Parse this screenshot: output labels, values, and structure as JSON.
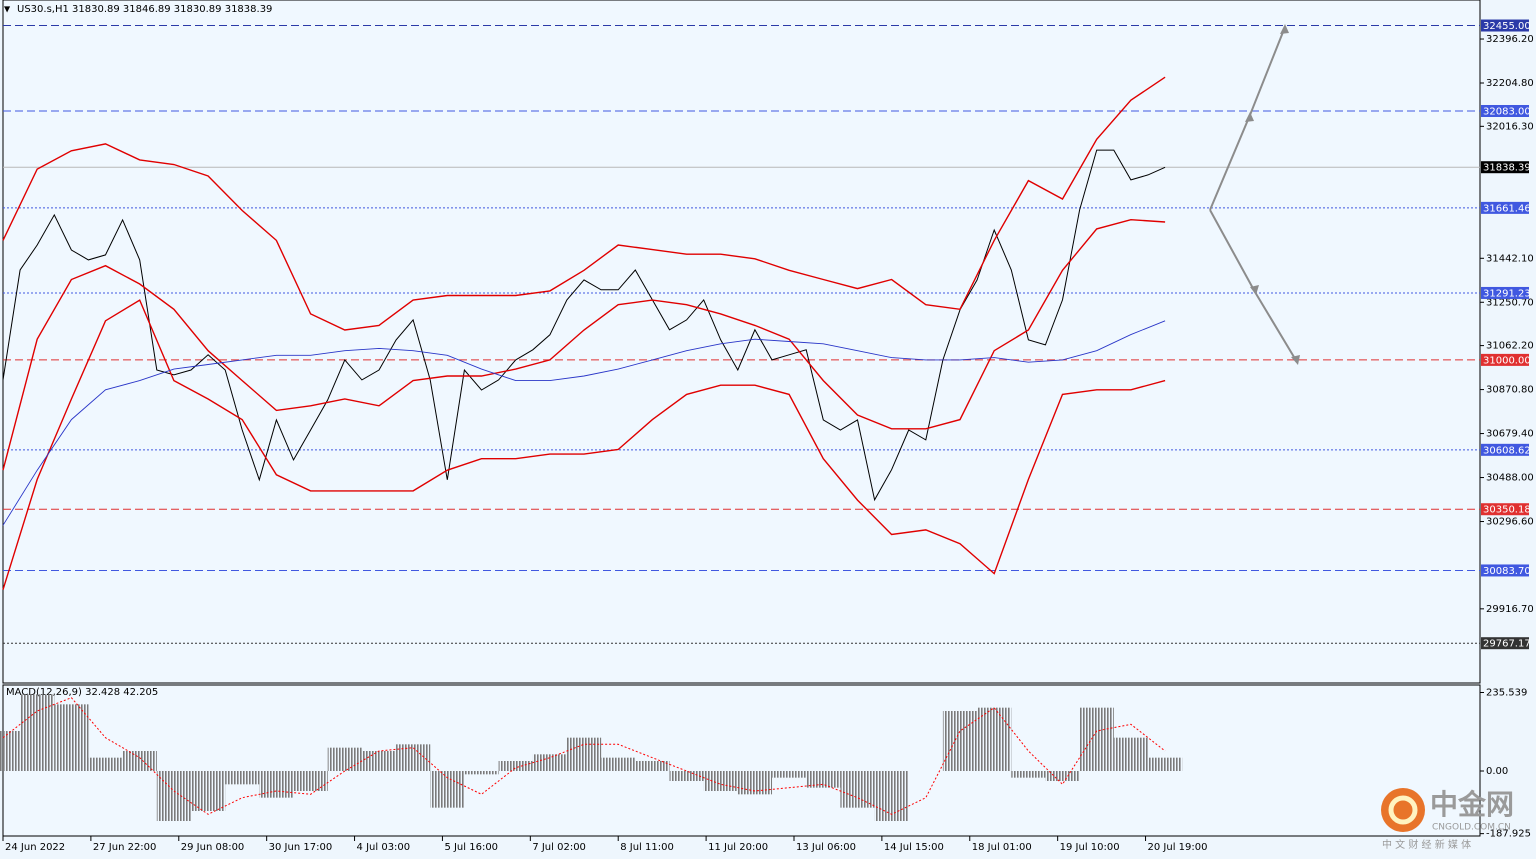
{
  "chart_data": [
    {
      "type": "line",
      "title": "US30.s,H1  31830.89 31846.89 31830.89 31838.39",
      "xlim": [
        0,
        605
      ],
      "xticks": [
        {
          "value": 0,
          "label": "24 Jun 2022"
        },
        {
          "value": 36,
          "label": "27 Jun 22:00"
        },
        {
          "value": 72,
          "label": "29 Jun 08:00"
        },
        {
          "value": 108,
          "label": "30 Jun 17:00"
        },
        {
          "value": 144,
          "label": "4 Jul 03:00"
        },
        {
          "value": 180,
          "label": "5 Jul 16:00"
        },
        {
          "value": 216,
          "label": "7 Jul 02:00"
        },
        {
          "value": 252,
          "label": "8 Jul 11:00"
        },
        {
          "value": 288,
          "label": "11 Jul 20:00"
        },
        {
          "value": 324,
          "label": "13 Jul 06:00"
        },
        {
          "value": 360,
          "label": "14 Jul 15:00"
        },
        {
          "value": 396,
          "label": "18 Jul 01:00"
        },
        {
          "value": 432,
          "label": "19 Jul 10:00"
        },
        {
          "value": 468,
          "label": "20 Jul 19:00"
        }
      ],
      "ylim": [
        29594,
        32566
      ],
      "yticks": [
        {
          "value": 32396.2,
          "label": "32396.20"
        },
        {
          "value": 32204.8,
          "label": "32204.80"
        },
        {
          "value": 32016.3,
          "label": "32016.30"
        },
        {
          "value": 31442.1,
          "label": "31442.10"
        },
        {
          "value": 31250.7,
          "label": "31250.70"
        },
        {
          "value": 31062.2,
          "label": "31062.20"
        },
        {
          "value": 30870.8,
          "label": "30870.80"
        },
        {
          "value": 30679.4,
          "label": "30679.40"
        },
        {
          "value": 30488,
          "label": "30488.00"
        },
        {
          "value": 30296.6,
          "label": "30296.60"
        },
        {
          "value": 29916.7,
          "label": "29916.70"
        }
      ],
      "series": [
        {
          "color": "#000000",
          "width": 1,
          "x": [
            0,
            7,
            14,
            21,
            28,
            35,
            42,
            49,
            56,
            63,
            70,
            77,
            84,
            91,
            98,
            105,
            112,
            119,
            126,
            133,
            140,
            147,
            154,
            161,
            168,
            175,
            182,
            189,
            196,
            203,
            210,
            217,
            224,
            231,
            238,
            245,
            252,
            259,
            266,
            273,
            280,
            287,
            294,
            301,
            308,
            315,
            322,
            329,
            336,
            343,
            350,
            357,
            364,
            371,
            378,
            385,
            392,
            399,
            406,
            413,
            420,
            427,
            434,
            441,
            448,
            455,
            462,
            469,
            476
          ],
          "values": [
            30913,
            31391,
            31500,
            31631,
            31478,
            31435,
            31457,
            31609,
            31435,
            30956,
            30935,
            30956,
            31022,
            30956,
            30695,
            30478,
            30739,
            30565,
            30695,
            30826,
            31000,
            30913,
            30956,
            31087,
            31174,
            30913,
            30478,
            30956,
            30869,
            30913,
            31000,
            31044,
            31109,
            31261,
            31348,
            31305,
            31305,
            31391,
            31261,
            31131,
            31174,
            31261,
            31087,
            30956,
            31131,
            31000,
            31022,
            31044,
            30739,
            30695,
            30739,
            30391,
            30522,
            30695,
            30652,
            31000,
            31218,
            31348,
            31565,
            31391,
            31087,
            31065,
            31261,
            31652,
            31913,
            31913,
            31783,
            31805,
            31838
          ]
        },
        {
          "color": "#e00000",
          "width": 1.4,
          "x": [
            0,
            14,
            28,
            42,
            56,
            70,
            84,
            98,
            112,
            126,
            140,
            154,
            168,
            182,
            196,
            210,
            224,
            238,
            252,
            266,
            280,
            294,
            308,
            322,
            336,
            350,
            364,
            378,
            392,
            406,
            420,
            434,
            448,
            462,
            476
          ],
          "values": [
            31520,
            31830,
            31910,
            31940,
            31870,
            31850,
            31800,
            31650,
            31520,
            31200,
            31130,
            31150,
            31260,
            31280,
            31280,
            31280,
            31300,
            31390,
            31500,
            31480,
            31460,
            31460,
            31440,
            31390,
            31350,
            31310,
            31350,
            31240,
            31220,
            31520,
            31780,
            31700,
            31960,
            32130,
            32230
          ]
        },
        {
          "color": "#e00000",
          "width": 1.4,
          "x": [
            0,
            14,
            28,
            42,
            56,
            70,
            84,
            98,
            112,
            126,
            140,
            154,
            168,
            182,
            196,
            210,
            224,
            238,
            252,
            266,
            280,
            294,
            308,
            322,
            336,
            350,
            364,
            378,
            392,
            406,
            420,
            434,
            448,
            462,
            476
          ],
          "values": [
            30520,
            31090,
            31350,
            31410,
            31330,
            31220,
            31040,
            30910,
            30780,
            30800,
            30830,
            30800,
            30910,
            30930,
            30930,
            30960,
            31000,
            31130,
            31240,
            31260,
            31240,
            31200,
            31150,
            31090,
            30910,
            30760,
            30700,
            30700,
            30740,
            31040,
            31130,
            31390,
            31570,
            31610,
            31600
          ]
        },
        {
          "color": "#e00000",
          "width": 1.4,
          "x": [
            0,
            14,
            28,
            42,
            56,
            70,
            84,
            98,
            112,
            126,
            140,
            154,
            168,
            182,
            196,
            210,
            224,
            238,
            252,
            266,
            280,
            294,
            308,
            322,
            336,
            350,
            364,
            378,
            392,
            406,
            420,
            434,
            448,
            462,
            476
          ],
          "values": [
            30000,
            30480,
            30830,
            31170,
            31260,
            30910,
            30830,
            30740,
            30500,
            30430,
            30430,
            30430,
            30430,
            30520,
            30570,
            30570,
            30590,
            30590,
            30610,
            30740,
            30850,
            30890,
            30890,
            30850,
            30570,
            30390,
            30240,
            30260,
            30200,
            30070,
            30480,
            30850,
            30870,
            30870,
            30910
          ]
        },
        {
          "color": "#2a36c8",
          "width": 0.9,
          "x": [
            0,
            14,
            28,
            42,
            56,
            70,
            84,
            98,
            112,
            126,
            140,
            154,
            168,
            182,
            196,
            210,
            224,
            238,
            252,
            266,
            280,
            294,
            308,
            322,
            336,
            350,
            364,
            378,
            392,
            406,
            420,
            434,
            448,
            462,
            476
          ],
          "values": [
            30280,
            30520,
            30740,
            30870,
            30910,
            30960,
            30980,
            31000,
            31020,
            31020,
            31040,
            31050,
            31040,
            31020,
            30960,
            30910,
            30910,
            30930,
            30960,
            31000,
            31040,
            31070,
            31090,
            31080,
            31070,
            31040,
            31010,
            31000,
            31000,
            31010,
            30990,
            31000,
            31040,
            31110,
            31170
          ]
        }
      ],
      "levels": [
        {
          "value": 32455,
          "label": "32455.00",
          "color": "#2b3aa8",
          "dash": "dashed"
        },
        {
          "value": 32083,
          "label": "32083.00",
          "color": "#4058e0",
          "dash": "dashed"
        },
        {
          "value": 31661.46,
          "label": "31661.46",
          "color": "#4058e0",
          "dash": "dotted"
        },
        {
          "value": 31291.23,
          "label": "31291.23",
          "color": "#4058e0",
          "dash": "dotted"
        },
        {
          "value": 31000,
          "label": "31000.00",
          "color": "#e03030",
          "dash": "dashed"
        },
        {
          "value": 30608.62,
          "label": "30608.62",
          "color": "#4058e0",
          "dash": "dotted"
        },
        {
          "value": 30350.18,
          "label": "30350.18",
          "color": "#e03030",
          "dash": "dashed"
        },
        {
          "value": 30083.7,
          "label": "30083.70",
          "color": "#4058e0",
          "dash": "dashed"
        },
        {
          "value": 29767.17,
          "label": "29767.17",
          "color": "#333333",
          "dash": "dotted"
        }
      ],
      "current": {
        "value": 31838.39,
        "label": "31838.39",
        "color": "#000000"
      }
    },
    {
      "type": "bar",
      "title": "MACD(12,26,9) 32.428 42.205",
      "ylim": [
        -195,
        258
      ],
      "yticks": [
        {
          "value": 235.539,
          "label": "235.539"
        },
        {
          "value": 0,
          "label": "0.00"
        },
        {
          "value": -187.925,
          "label": "-187.925"
        }
      ],
      "x": [
        0,
        14,
        28,
        42,
        56,
        70,
        84,
        98,
        112,
        126,
        140,
        154,
        168,
        182,
        196,
        210,
        224,
        238,
        252,
        266,
        280,
        294,
        308,
        322,
        336,
        350,
        364,
        378,
        392,
        406,
        420,
        434,
        448,
        462,
        476
      ],
      "series": [
        {
          "color": "#7a7a7a",
          "values": [
            120,
            230,
            200,
            40,
            60,
            -150,
            -120,
            -40,
            -80,
            -60,
            70,
            60,
            80,
            -110,
            -10,
            30,
            50,
            100,
            40,
            30,
            -30,
            -60,
            -70,
            -20,
            -50,
            -110,
            -150,
            0,
            180,
            190,
            -20,
            -30,
            190,
            100,
            40
          ]
        },
        {
          "color": "#ff0000",
          "dash": "dotted",
          "values": [
            100,
            180,
            220,
            100,
            40,
            -60,
            -130,
            -80,
            -60,
            -70,
            0,
            60,
            70,
            -20,
            -70,
            10,
            40,
            80,
            80,
            40,
            0,
            -40,
            -60,
            -50,
            -40,
            -80,
            -130,
            -80,
            120,
            190,
            60,
            -40,
            120,
            140,
            60
          ]
        }
      ]
    }
  ],
  "watermark": {
    "brand": "中金网",
    "site": "CNGOLD.COM.CN",
    "slogan": "中 文 财 经 新 媒 体"
  }
}
